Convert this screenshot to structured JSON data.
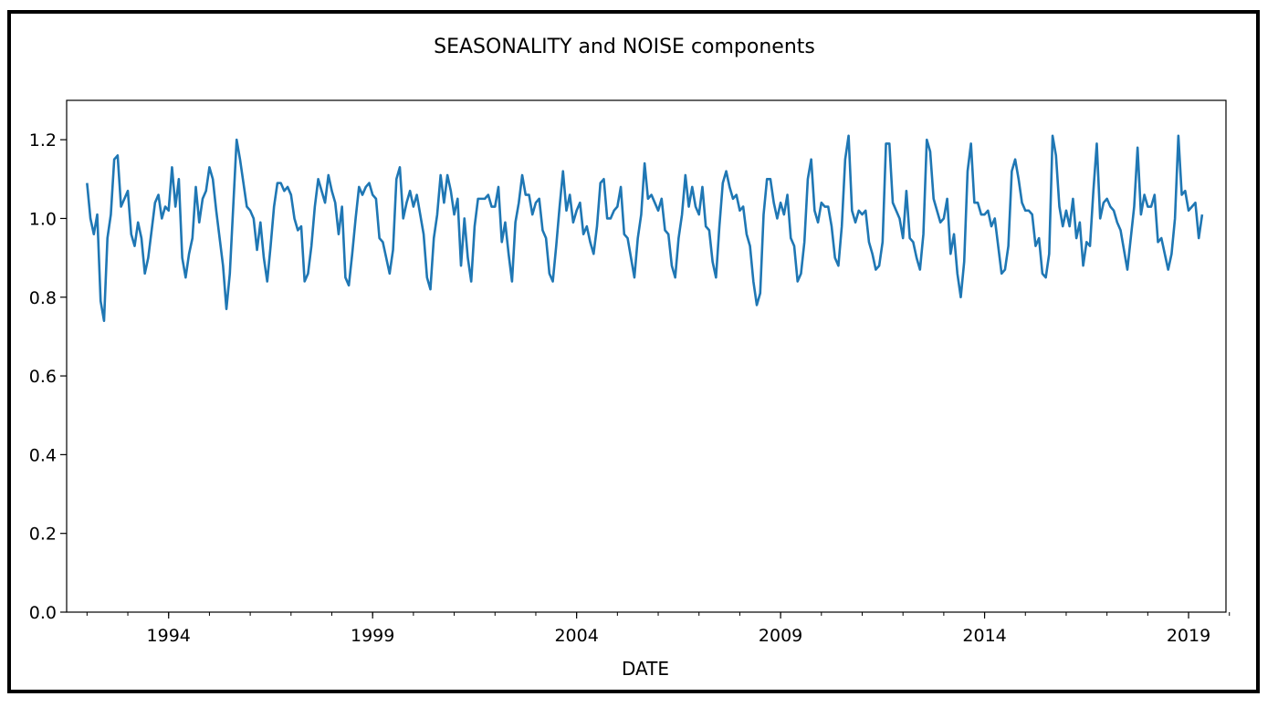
{
  "chart_data": {
    "type": "line",
    "title": "SEASONALITY and NOISE components",
    "xlabel": "DATE",
    "ylabel": "",
    "ylim": [
      0.0,
      1.3
    ],
    "xlim": [
      "1992-01",
      "2020-06"
    ],
    "y_ticks": [
      "0.0",
      "0.2",
      "0.4",
      "0.6",
      "0.8",
      "1.0",
      "1.2"
    ],
    "x_ticks": [
      "1994",
      "1999",
      "2004",
      "2009",
      "2014",
      "2019"
    ],
    "grid": false,
    "legend": "none",
    "series": [
      {
        "color": "#1f77b4",
        "x_start": "1992-07",
        "frequency": "monthly",
        "values": [
          1.09,
          1.0,
          0.96,
          1.01,
          0.79,
          0.74,
          0.95,
          1.01,
          1.15,
          1.16,
          1.03,
          1.05,
          1.07,
          0.96,
          0.93,
          0.99,
          0.95,
          0.86,
          0.9,
          0.97,
          1.04,
          1.06,
          1.0,
          1.03,
          1.02,
          1.13,
          1.03,
          1.1,
          0.9,
          0.85,
          0.91,
          0.95,
          1.08,
          0.99,
          1.05,
          1.07,
          1.13,
          1.1,
          1.02,
          0.95,
          0.88,
          0.77,
          0.86,
          1.03,
          1.2,
          1.15,
          1.09,
          1.03,
          1.02,
          1.0,
          0.92,
          0.99,
          0.9,
          0.84,
          0.93,
          1.03,
          1.09,
          1.09,
          1.07,
          1.08,
          1.06,
          1.0,
          0.97,
          0.98,
          0.84,
          0.86,
          0.93,
          1.03,
          1.1,
          1.07,
          1.04,
          1.11,
          1.07,
          1.04,
          0.96,
          1.03,
          0.85,
          0.83,
          0.91,
          1.0,
          1.08,
          1.06,
          1.08,
          1.09,
          1.06,
          1.05,
          0.95,
          0.94,
          0.9,
          0.86,
          0.92,
          1.1,
          1.13,
          1.0,
          1.04,
          1.07,
          1.03,
          1.06,
          1.01,
          0.96,
          0.85,
          0.82,
          0.95,
          1.01,
          1.11,
          1.04,
          1.11,
          1.07,
          1.01,
          1.05,
          0.88,
          1.0,
          0.9,
          0.84,
          0.98,
          1.05,
          1.05,
          1.05,
          1.06,
          1.03,
          1.03,
          1.08,
          0.94,
          0.99,
          0.91,
          0.84,
          0.99,
          1.04,
          1.11,
          1.06,
          1.06,
          1.01,
          1.04,
          1.05,
          0.97,
          0.95,
          0.86,
          0.84,
          0.93,
          1.03,
          1.12,
          1.02,
          1.06,
          0.99,
          1.02,
          1.04,
          0.96,
          0.98,
          0.94,
          0.91,
          0.98,
          1.09,
          1.1,
          1.0,
          1.0,
          1.02,
          1.03,
          1.08,
          0.96,
          0.95,
          0.9,
          0.85,
          0.95,
          1.01,
          1.14,
          1.05,
          1.06,
          1.04,
          1.02,
          1.05,
          0.97,
          0.96,
          0.88,
          0.85,
          0.95,
          1.01,
          1.11,
          1.03,
          1.08,
          1.03,
          1.01,
          1.08,
          0.98,
          0.97,
          0.89,
          0.85,
          0.98,
          1.09,
          1.12,
          1.08,
          1.05,
          1.06,
          1.02,
          1.03,
          0.96,
          0.93,
          0.84,
          0.78,
          0.81,
          1.01,
          1.1,
          1.1,
          1.04,
          1.0,
          1.04,
          1.01,
          1.06,
          0.95,
          0.93,
          0.84,
          0.86,
          0.94,
          1.1,
          1.15,
          1.02,
          0.99,
          1.04,
          1.03,
          1.03,
          0.98,
          0.9,
          0.88,
          0.98,
          1.15,
          1.21,
          1.02,
          0.99,
          1.02,
          1.01,
          1.02,
          0.94,
          0.91,
          0.87,
          0.88,
          0.94,
          1.19,
          1.19,
          1.04,
          1.02,
          1.0,
          0.95,
          1.07,
          0.95,
          0.94,
          0.9,
          0.87,
          0.96,
          1.2,
          1.17,
          1.05,
          1.02,
          0.99,
          1.0,
          1.05,
          0.91,
          0.96,
          0.86,
          0.8,
          0.89,
          1.12,
          1.19,
          1.04,
          1.04,
          1.01,
          1.01,
          1.02,
          0.98,
          1.0,
          0.93,
          0.86,
          0.87,
          0.93,
          1.12,
          1.15,
          1.1,
          1.04,
          1.02,
          1.02,
          1.01,
          0.93,
          0.95,
          0.86,
          0.85,
          0.91,
          1.21,
          1.16,
          1.03,
          0.98,
          1.02,
          0.98,
          1.05,
          0.95,
          0.99,
          0.88,
          0.94,
          0.93,
          1.07,
          1.19,
          1.0,
          1.04,
          1.05,
          1.03,
          1.02,
          0.99,
          0.97,
          0.92,
          0.87,
          0.95,
          1.03,
          1.18,
          1.01,
          1.06,
          1.03,
          1.03,
          1.06,
          0.94,
          0.95,
          0.91,
          0.87,
          0.91,
          1.0,
          1.21,
          1.06,
          1.07,
          1.02,
          1.03,
          1.04,
          0.95,
          1.01
        ]
      }
    ]
  }
}
